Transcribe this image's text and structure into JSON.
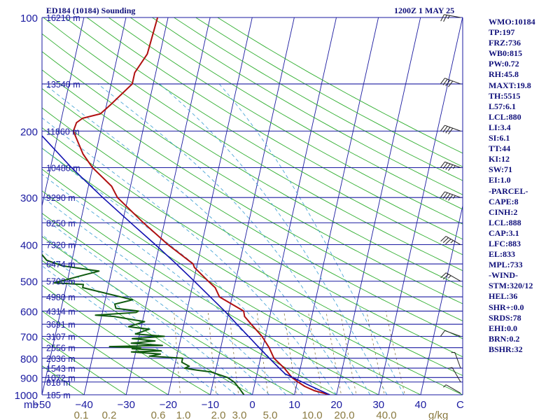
{
  "header": {
    "left": "ED184 (10184) Sounding",
    "right": "1200Z  1 MAY 25"
  },
  "indices": [
    "WMO:10184",
    "TP:197",
    "FRZ:736",
    "WB0:815",
    "PW:0.72",
    "RH:45.8",
    "MAXT:19.8",
    "TH:5515",
    "L57:6.1",
    "LCL:880",
    "LI:3.4",
    "SI:6.1",
    "TT:44",
    "KI:12",
    "SW:71",
    "EI:1.0",
    "-PARCEL-",
    "CAPE:8",
    "CINH:2",
    "LCL:888",
    "CAP:3.1",
    "LFC:883",
    "EL:833",
    "MPL:733",
    "-WIND-",
    "STM:320/12",
    "HEL:36",
    "SHR+:0.0",
    "SRDS:78",
    "EHI:0.0",
    "BRN:0.2",
    "BSHR:32"
  ],
  "colors": {
    "isobar": "#1a1aa0",
    "isotherm": "#1a1aa0",
    "dry_adiabat": "#2fae2f",
    "moist_adiabat": "#4aa6d6",
    "mixing_ratio": "#8a7a40",
    "temperature": "#b01010",
    "dewpoint": "#0f5a0f",
    "parcel": "#1010b0",
    "label_blue": "#1a1aa0",
    "label_mix": "#8a7a40",
    "text": "#10107a"
  },
  "chart_data": {
    "type": "line",
    "chart_kind": "skew-T log-p sounding diagram",
    "xlim": [
      -50,
      50
    ],
    "ylim": [
      1000,
      100
    ],
    "y_scale": "log",
    "x_unit": "C",
    "y_unit": "mb",
    "pressure_ticks": [
      1000,
      900,
      800,
      700,
      600,
      500,
      400,
      300,
      200,
      100
    ],
    "temperature_ticks": [
      -50,
      -40,
      -30,
      -20,
      -10,
      0,
      10,
      20,
      30,
      40
    ],
    "x_tick_labels": [
      "−50",
      "−40",
      "−30",
      "−20",
      "−10",
      "0",
      "10",
      "20",
      "30",
      "40"
    ],
    "unit_labels": {
      "mb": "mb",
      "celsius": "C",
      "gkg": "g/kg"
    },
    "mixing_ratio_labels": [
      "0.1",
      "0.2",
      "0.6",
      "1.0",
      "2.0",
      "3.0",
      "5.0",
      "10.0",
      "20.0",
      "40.0"
    ],
    "height_labels": [
      {
        "p": 1000,
        "text": "185 m"
      },
      {
        "p": 925,
        "text": "818 m"
      },
      {
        "p": 900,
        "text": "1072 m"
      },
      {
        "p": 850,
        "text": "1543 m"
      },
      {
        "p": 800,
        "text": "2036 m"
      },
      {
        "p": 750,
        "text": "2556 m"
      },
      {
        "p": 700,
        "text": "3107 m"
      },
      {
        "p": 650,
        "text": "3691 m"
      },
      {
        "p": 600,
        "text": "4314 m"
      },
      {
        "p": 550,
        "text": "4980 m"
      },
      {
        "p": 500,
        "text": "5700 m"
      },
      {
        "p": 450,
        "text": "6474 m"
      },
      {
        "p": 400,
        "text": "7320 m"
      },
      {
        "p": 350,
        "text": "8250 m"
      },
      {
        "p": 300,
        "text": "9290 m"
      },
      {
        "p": 250,
        "text": "10480 m"
      },
      {
        "p": 200,
        "text": "11860 m"
      },
      {
        "p": 150,
        "text": "13540 m"
      },
      {
        "p": 100,
        "text": "16210 m"
      }
    ],
    "series": [
      {
        "name": "temperature",
        "points": [
          [
            1000,
            18.4
          ],
          [
            975,
            14.5
          ],
          [
            950,
            12.0
          ],
          [
            925,
            10.2
          ],
          [
            900,
            8.5
          ],
          [
            850,
            6.2
          ],
          [
            800,
            3.2
          ],
          [
            750,
            1.5
          ],
          [
            700,
            -0.8
          ],
          [
            650,
            -4.0
          ],
          [
            620,
            -6.0
          ],
          [
            600,
            -6.5
          ],
          [
            550,
            -13.0
          ],
          [
            520,
            -14.5
          ],
          [
            500,
            -16.5
          ],
          [
            460,
            -20.5
          ],
          [
            450,
            -21.0
          ],
          [
            400,
            -28.0
          ],
          [
            350,
            -35.0
          ],
          [
            300,
            -42.5
          ],
          [
            280,
            -44.5
          ],
          [
            250,
            -50.0
          ],
          [
            230,
            -53.0
          ],
          [
            200,
            -56.5
          ],
          [
            190,
            -56.2
          ],
          [
            185,
            -55.0
          ],
          [
            180,
            -51.0
          ],
          [
            170,
            -49.0
          ],
          [
            150,
            -45.0
          ],
          [
            140,
            -45.0
          ],
          [
            125,
            -43.0
          ],
          [
            100,
            -42.5
          ]
        ]
      },
      {
        "name": "dewpoint",
        "points": [
          [
            1000,
            -2.0
          ],
          [
            960,
            -3.5
          ],
          [
            925,
            -5.0
          ],
          [
            900,
            -6.8
          ],
          [
            870,
            -11.0
          ],
          [
            860,
            -14.5
          ],
          [
            850,
            -17.5
          ],
          [
            840,
            -16.5
          ],
          [
            820,
            -18.5
          ],
          [
            800,
            -18.5
          ],
          [
            790,
            -26.5
          ],
          [
            780,
            -24.0
          ],
          [
            770,
            -31.0
          ],
          [
            765,
            -24.0
          ],
          [
            760,
            -26.0
          ],
          [
            755,
            -31.0
          ],
          [
            750,
            -29.0
          ],
          [
            745,
            -36.5
          ],
          [
            740,
            -24.0
          ],
          [
            730,
            -31.5
          ],
          [
            720,
            -26.0
          ],
          [
            710,
            -31.5
          ],
          [
            700,
            -24.0
          ],
          [
            690,
            -31.0
          ],
          [
            670,
            -28.0
          ],
          [
            660,
            -33.0
          ],
          [
            640,
            -29.5
          ],
          [
            620,
            -37.0
          ],
          [
            615,
            -41.5
          ],
          [
            605,
            -32.0
          ],
          [
            600,
            -31.5
          ],
          [
            590,
            -37.0
          ],
          [
            575,
            -37.5
          ],
          [
            560,
            -33.5
          ],
          [
            520,
            -46.0
          ],
          [
            510,
            -46.0
          ],
          [
            505,
            -53.0
          ],
          [
            480,
            -46.0
          ],
          [
            470,
            -43.0
          ],
          [
            455,
            -52.0
          ],
          [
            440,
            -56.0
          ],
          [
            400,
            -60.0
          ],
          [
            350,
            -66.0
          ],
          [
            340,
            -66.0
          ],
          [
            330,
            -71.0
          ],
          [
            320,
            -71.0
          ],
          [
            300,
            -72.0
          ],
          [
            285,
            -75.0
          ],
          [
            270,
            -76.0
          ],
          [
            250,
            -80.0
          ],
          [
            220,
            -82.0
          ],
          [
            200,
            -83.0
          ],
          [
            190,
            -82.0
          ],
          [
            185,
            -85.5
          ],
          [
            180,
            -87.0
          ],
          [
            175,
            -90.0
          ],
          [
            165,
            -88.0
          ],
          [
            150,
            -92.0
          ],
          [
            140,
            -93.0
          ],
          [
            120,
            -91.0
          ],
          [
            110,
            -90.0
          ],
          [
            100,
            -86.0
          ]
        ]
      },
      {
        "name": "parcel",
        "points": [
          [
            1000,
            18.4
          ],
          [
            950,
            13.6
          ],
          [
            900,
            8.7
          ],
          [
            880,
            6.7
          ],
          [
            850,
            5.0
          ],
          [
            800,
            2.1
          ],
          [
            750,
            -0.9
          ],
          [
            700,
            -4.0
          ],
          [
            650,
            -7.4
          ],
          [
            600,
            -11.0
          ],
          [
            550,
            -15.2
          ],
          [
            500,
            -19.8
          ],
          [
            450,
            -25.0
          ],
          [
            400,
            -31.0
          ],
          [
            350,
            -38.0
          ],
          [
            300,
            -46.0
          ],
          [
            250,
            -55.0
          ],
          [
            200,
            -65.0
          ],
          [
            170,
            -72.5
          ],
          [
            150,
            -78.0
          ],
          [
            130,
            -84.0
          ],
          [
            120,
            -87.5
          ]
        ]
      }
    ],
    "wind_barbs": [
      {
        "p": 990,
        "dir": 300,
        "spd": 5
      },
      {
        "p": 925,
        "dir": 330,
        "spd": 5
      },
      {
        "p": 850,
        "dir": 340,
        "spd": 5
      },
      {
        "p": 700,
        "dir": 290,
        "spd": 10
      },
      {
        "p": 500,
        "dir": 300,
        "spd": 25
      },
      {
        "p": 400,
        "dir": 300,
        "spd": 35
      },
      {
        "p": 300,
        "dir": 290,
        "spd": 45
      },
      {
        "p": 250,
        "dir": 290,
        "spd": 45
      },
      {
        "p": 200,
        "dir": 290,
        "spd": 40
      },
      {
        "p": 150,
        "dir": 290,
        "spd": 40
      },
      {
        "p": 100,
        "dir": 280,
        "spd": 25
      }
    ]
  }
}
